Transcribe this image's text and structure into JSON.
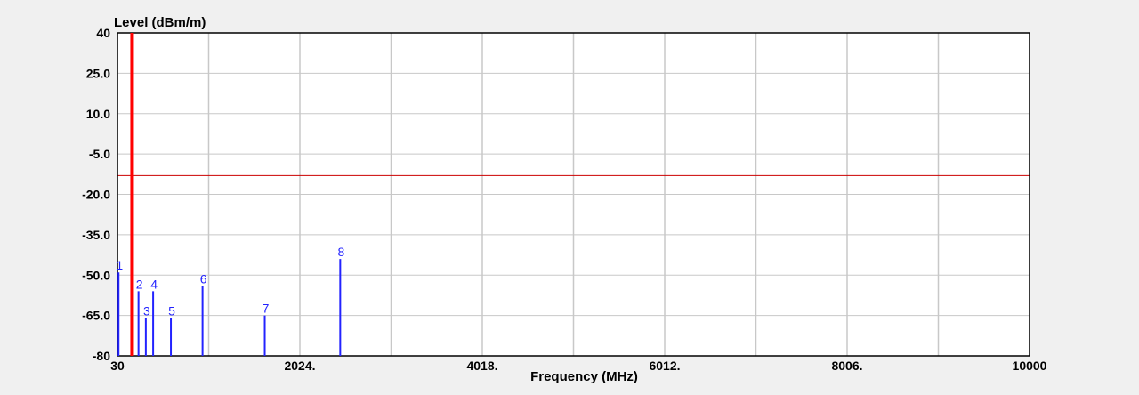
{
  "chart_data": {
    "type": "bar",
    "ylabel": "Level (dBm/m)",
    "xlabel": "Frequency (MHz)",
    "xlim": [
      30,
      10000
    ],
    "ylim": [
      -80,
      40
    ],
    "x_ticks": [
      30,
      2024,
      4018,
      6012,
      8006,
      10000
    ],
    "x_tick_labels": [
      "30",
      "2024.",
      "4018.",
      "6012.",
      "8006.",
      "10000"
    ],
    "y_ticks": [
      40,
      25,
      10,
      -5,
      -20,
      -35,
      -50,
      -65,
      -80
    ],
    "y_tick_labels": [
      "40",
      "25.0",
      "10.0",
      "-5.0",
      "-20.0",
      "-35.0",
      "-50.0",
      "-65.0",
      "-80"
    ],
    "grid": true,
    "limit_line": {
      "level": -13,
      "color": "#cc0000"
    },
    "series": [
      {
        "color": "#ff0000",
        "points": [
          {
            "x": 190,
            "y": 40
          }
        ]
      },
      {
        "color": "#2323ff",
        "points": [
          {
            "label": "1",
            "x": 42,
            "y": -49
          },
          {
            "label": "2",
            "x": 260,
            "y": -56
          },
          {
            "label": "3",
            "x": 340,
            "y": -66
          },
          {
            "label": "4",
            "x": 420,
            "y": -56
          },
          {
            "label": "5",
            "x": 614,
            "y": -66
          },
          {
            "label": "6",
            "x": 960,
            "y": -54
          },
          {
            "label": "7",
            "x": 1640,
            "y": -65
          },
          {
            "label": "8",
            "x": 2465,
            "y": -44
          }
        ]
      }
    ],
    "colors": {
      "background": "#f0f0f0",
      "plot_background": "#ffffff",
      "grid": "#c8c8c8",
      "frame": "#000000"
    }
  }
}
